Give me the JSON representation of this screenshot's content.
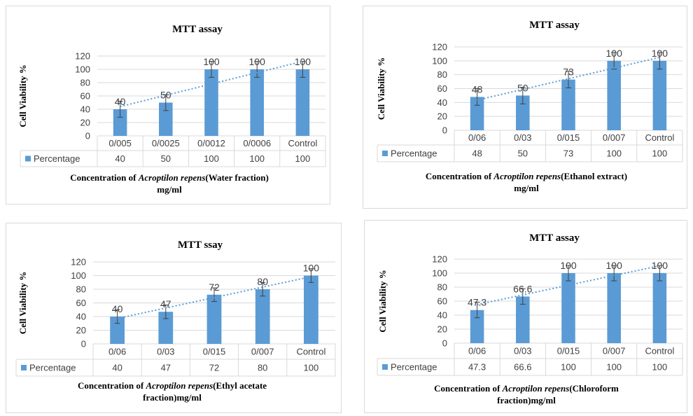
{
  "chart_data": [
    {
      "type": "bar",
      "title": "MTT assay",
      "ylabel": "Cell Viability %",
      "xlabel_lines": [
        [
          {
            "t": "Concentration of ",
            "i": false
          },
          {
            "t": "Acroptilon repens",
            "i": true
          },
          {
            "t": "(Water fraction)",
            "i": false
          }
        ],
        [
          {
            "t": "mg/ml",
            "i": false
          }
        ]
      ],
      "categories": [
        "0/005",
        "0/0025",
        "0/0012",
        "0/0006",
        "Control"
      ],
      "series": [
        {
          "name": "Percentage",
          "values": [
            40,
            50,
            100,
            100,
            100
          ]
        }
      ],
      "data_labels": [
        "40",
        "50",
        "100",
        "100",
        "100"
      ],
      "table_values": [
        "40",
        "50",
        "100",
        "100",
        "100"
      ],
      "error": [
        12,
        12,
        12,
        12,
        12
      ],
      "trendline": {
        "type": "linear",
        "style": "dotted"
      },
      "ylim": [
        0,
        120
      ],
      "yticks": [
        0,
        20,
        40,
        60,
        80,
        100,
        120
      ],
      "grid": true,
      "legend": "data-table"
    },
    {
      "type": "bar",
      "title": "MTT assay",
      "ylabel": "Cell Viability %",
      "xlabel_lines": [
        [
          {
            "t": "Concentration of ",
            "i": false
          },
          {
            "t": "Acroptilon repens",
            "i": true
          },
          {
            "t": "(Ethanol extract)",
            "i": false
          }
        ],
        [
          {
            "t": "mg/ml",
            "i": false
          }
        ]
      ],
      "categories": [
        "0/06",
        "0/03",
        "0/015",
        "0/007",
        "Control"
      ],
      "series": [
        {
          "name": "Percentage",
          "values": [
            48,
            50,
            73,
            100,
            100
          ]
        }
      ],
      "data_labels": [
        "48",
        "50",
        "73",
        "100",
        "100"
      ],
      "table_values": [
        "48",
        "50",
        "73",
        "100",
        "100"
      ],
      "error": [
        12,
        12,
        12,
        12,
        12
      ],
      "trendline": {
        "type": "linear",
        "style": "dotted"
      },
      "ylim": [
        0,
        120
      ],
      "yticks": [
        0,
        20,
        40,
        60,
        80,
        100,
        120
      ],
      "grid": true,
      "legend": "data-table"
    },
    {
      "type": "bar",
      "title": "MTT ssay",
      "ylabel": "Cell Viability %",
      "xlabel_lines": [
        [
          {
            "t": "Concentration of ",
            "i": false
          },
          {
            "t": "Acroptilon repens",
            "i": true
          },
          {
            "t": "(Ethyl acetate",
            "i": false
          }
        ],
        [
          {
            "t": "fraction)mg/ml",
            "i": false
          }
        ]
      ],
      "categories": [
        "0/06",
        "0/03",
        "0/015",
        "0/007",
        "Control"
      ],
      "series": [
        {
          "name": "Percentage",
          "values": [
            40,
            47,
            72,
            80,
            100
          ]
        }
      ],
      "data_labels": [
        "40",
        "47",
        "72",
        "80",
        "100"
      ],
      "table_values": [
        "40",
        "47",
        "72",
        "80",
        "100"
      ],
      "error": [
        10,
        10,
        10,
        10,
        10
      ],
      "trendline": {
        "type": "linear",
        "style": "dotted"
      },
      "ylim": [
        0,
        120
      ],
      "yticks": [
        0,
        20,
        40,
        60,
        80,
        100,
        120
      ],
      "grid": true,
      "legend": "data-table"
    },
    {
      "type": "bar",
      "title": "MTT assay",
      "ylabel": "Cell Viability %",
      "xlabel_lines": [
        [
          {
            "t": "Concentration of ",
            "i": false
          },
          {
            "t": "Acroptilon repens",
            "i": true
          },
          {
            "t": "(Chloroform",
            "i": false
          }
        ],
        [
          {
            "t": "fraction)mg/ml",
            "i": false
          }
        ]
      ],
      "categories": [
        "0/06",
        "0/03",
        "0/015",
        "0/007",
        "Control"
      ],
      "series": [
        {
          "name": "Percentage",
          "values": [
            47.3,
            66.6,
            100,
            100,
            100
          ]
        }
      ],
      "data_labels": [
        "47.3",
        "66.6",
        "100",
        "100",
        "100"
      ],
      "table_values": [
        "47.3",
        "66.6",
        "100",
        "100",
        "100"
      ],
      "error": [
        11,
        11,
        11,
        11,
        11
      ],
      "trendline": {
        "type": "linear",
        "style": "dotted"
      },
      "ylim": [
        0,
        120
      ],
      "yticks": [
        0,
        20,
        40,
        60,
        80,
        100,
        120
      ],
      "grid": true,
      "legend": "data-table"
    }
  ],
  "colors": {
    "bar": "#5b9bd5",
    "trendline": "#5b9bd5",
    "grid": "#d9d9d9",
    "error_bar": "#404040",
    "text": "#404040"
  }
}
